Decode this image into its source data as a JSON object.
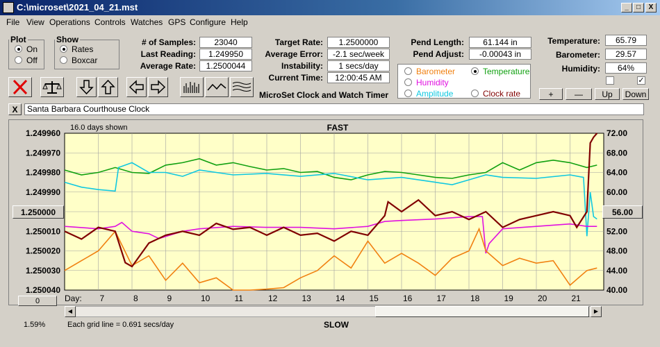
{
  "window": {
    "title": "C:\\microset\\2021_04_21.mst",
    "min": "_",
    "max": "□",
    "close": "X"
  },
  "menu": [
    "File",
    "View",
    "Operations",
    "Controls",
    "Watches",
    "GPS",
    "Configure",
    "Help"
  ],
  "plot_group": {
    "label": "Plot",
    "on": "On",
    "off": "Off"
  },
  "show_group": {
    "label": "Show",
    "rates": "Rates",
    "boxcar": "Boxcar"
  },
  "stats": {
    "samples_label": "# of Samples:",
    "samples": "23040",
    "last_label": "Last Reading:",
    "last": "1.249950",
    "avg_rate_label": "Average Rate:",
    "avg_rate": "1.2500044",
    "target_label": "Target Rate:",
    "target": "1.2500000",
    "avg_err_label": "Average Error:",
    "avg_err": "-2.1 sec/week",
    "instab_label": "Instability:",
    "instab": "1 secs/day",
    "time_label": "Current Time:",
    "time": "12:00:45 AM",
    "pend_len_label": "Pend Length:",
    "pend_len": "61.144 in",
    "pend_adj_label": "Pend Adjust:",
    "pend_adj": "-0.00043 in",
    "temp_label": "Temperature:",
    "temp": "65.79",
    "baro_label": "Barometer:",
    "baro": "29.57",
    "hum_label": "Humidity:",
    "hum": "64%"
  },
  "app_name": "MicroSet Clock and Watch Timer",
  "aux": {
    "barometer": "Barometer",
    "temperature": "Temperature",
    "humidity": "Humidity",
    "amplitude": "Amplitude",
    "clock_rate": "Clock rate",
    "colors": {
      "barometer": "#f08010",
      "temperature": "#10a010",
      "humidity": "#e010e0",
      "amplitude": "#10c8e0",
      "clock_rate": "#800000"
    }
  },
  "adj_buttons": {
    "plus": "+",
    "minus": "—",
    "up": "Up",
    "down": "Down"
  },
  "clock_name": "Santa Barbara Courthouse Clock",
  "close_x": "X",
  "chart_data": {
    "type": "line",
    "title": "FAST",
    "bottom_label": "SLOW",
    "days_shown": "16.0 days shown",
    "grid_note": "Each grid line = 0.691 secs/day",
    "percent": "1.59%",
    "day_label": "Day:",
    "left_ticks": [
      "1.249960",
      "1.249970",
      "1.249980",
      "1.249990",
      "1.250000",
      "1.250010",
      "1.250020",
      "1.250030",
      "1.250040"
    ],
    "right_ticks": [
      "72.00",
      "68.00",
      "64.00",
      "60.00",
      "56.00",
      "52.00",
      "48.00",
      "44.00",
      "40.00"
    ],
    "center_left": "1.250000",
    "center_right": "56.00",
    "scroll_value": "0",
    "x_ticks": [
      "7",
      "8",
      "9",
      "10",
      "11",
      "12",
      "13",
      "14",
      "15",
      "16",
      "17",
      "18",
      "19",
      "20",
      "21"
    ],
    "xlim": [
      6.0,
      22.0
    ],
    "ylim_left": [
      1.25004,
      1.24996
    ],
    "ylim_right": [
      40,
      72
    ],
    "series": [
      {
        "name": "Temperature",
        "color": "#10a010",
        "x": [
          6.0,
          6.5,
          7.0,
          7.5,
          8.0,
          8.5,
          9.0,
          9.5,
          10.0,
          10.5,
          11.0,
          11.5,
          12.0,
          12.5,
          13.0,
          13.5,
          14.0,
          14.5,
          15.0,
          15.5,
          16.0,
          16.5,
          17.0,
          17.5,
          18.0,
          18.5,
          19.0,
          19.5,
          20.0,
          20.5,
          21.0,
          21.5,
          21.8
        ],
        "y": [
          64.5,
          63.5,
          64.0,
          65.0,
          64.0,
          63.8,
          65.5,
          66.0,
          66.8,
          65.5,
          66.0,
          65.2,
          64.5,
          64.8,
          64.0,
          64.2,
          63.0,
          62.5,
          63.5,
          64.2,
          64.0,
          63.5,
          63.0,
          62.8,
          63.5,
          64.0,
          66.0,
          64.5,
          66.0,
          66.5,
          66.0,
          65.0,
          65.5
        ]
      },
      {
        "name": "Amplitude",
        "color": "#10c8e0",
        "x": [
          6.0,
          6.5,
          7.0,
          7.5,
          7.6,
          8.0,
          8.5,
          9.0,
          9.5,
          10.0,
          11.0,
          12.0,
          13.0,
          14.0,
          15.0,
          16.0,
          17.0,
          17.5,
          18.0,
          18.5,
          19.0,
          20.0,
          21.0,
          21.4,
          21.5,
          21.6,
          21.7,
          21.8
        ],
        "y": [
          62.0,
          61.0,
          60.5,
          60.2,
          65.0,
          66.0,
          64.0,
          64.0,
          63.2,
          64.5,
          63.5,
          63.8,
          63.2,
          63.8,
          62.5,
          63.0,
          62.0,
          61.5,
          62.5,
          63.5,
          63.0,
          62.8,
          63.5,
          63.0,
          51.0,
          60.0,
          55.0,
          54.5
        ]
      },
      {
        "name": "Humidity",
        "color": "#e010e0",
        "x": [
          6.0,
          7.0,
          7.5,
          7.7,
          8.0,
          8.5,
          8.8,
          9.5,
          10.0,
          11.0,
          12.0,
          13.0,
          14.0,
          15.0,
          15.5,
          16.0,
          17.0,
          18.0,
          18.4,
          18.5,
          18.6,
          19.0,
          20.0,
          21.0,
          21.5,
          21.8
        ],
        "y": [
          53.0,
          52.5,
          53.0,
          53.8,
          52.0,
          51.5,
          50.5,
          52.0,
          52.5,
          53.0,
          52.8,
          52.8,
          52.5,
          53.0,
          54.0,
          54.2,
          54.5,
          55.0,
          55.0,
          47.5,
          49.5,
          52.5,
          53.0,
          53.5,
          53.0,
          53.0
        ]
      },
      {
        "name": "Barometer",
        "color": "#f08010",
        "x": [
          6.0,
          6.5,
          7.0,
          7.5,
          8.0,
          8.5,
          9.0,
          9.5,
          10.0,
          10.5,
          11.0,
          11.5,
          12.0,
          12.5,
          13.0,
          13.5,
          14.0,
          14.5,
          15.0,
          15.5,
          16.0,
          16.5,
          17.0,
          17.5,
          18.0,
          18.3,
          18.5,
          19.0,
          19.5,
          20.0,
          20.5,
          21.0,
          21.5,
          21.8
        ],
        "y": [
          44.0,
          46.0,
          48.0,
          52.0,
          45.0,
          47.0,
          42.0,
          45.5,
          41.5,
          42.5,
          40.0,
          40.0,
          40.2,
          40.5,
          42.5,
          44.0,
          47.0,
          44.5,
          50.0,
          45.5,
          47.5,
          45.5,
          43.0,
          46.5,
          48.0,
          52.5,
          48.0,
          45.0,
          46.5,
          45.5,
          46.0,
          41.0,
          44.0,
          44.5
        ]
      },
      {
        "name": "Clock rate",
        "color": "#800000",
        "x": [
          6.0,
          6.5,
          7.0,
          7.5,
          7.8,
          8.0,
          8.5,
          9.0,
          9.5,
          10.0,
          10.5,
          11.0,
          11.5,
          12.0,
          12.5,
          13.0,
          13.5,
          14.0,
          14.5,
          15.0,
          15.5,
          15.6,
          16.0,
          16.5,
          17.0,
          17.5,
          18.0,
          18.5,
          19.0,
          19.5,
          20.0,
          20.5,
          21.0,
          21.2,
          21.5,
          21.6,
          21.7,
          21.8
        ],
        "y": [
          1.25001,
          1.250014,
          1.250008,
          1.25001,
          1.250026,
          1.250028,
          1.250016,
          1.250012,
          1.25001,
          1.250012,
          1.250006,
          1.250009,
          1.250008,
          1.250012,
          1.250008,
          1.250012,
          1.250011,
          1.250015,
          1.25001,
          1.250012,
          1.250002,
          1.249995,
          1.25,
          1.249994,
          1.250002,
          1.25,
          1.250004,
          1.25,
          1.250008,
          1.250004,
          1.250002,
          1.25,
          1.250002,
          1.250008,
          1.25,
          1.249965,
          1.249962,
          1.24996
        ]
      }
    ]
  }
}
